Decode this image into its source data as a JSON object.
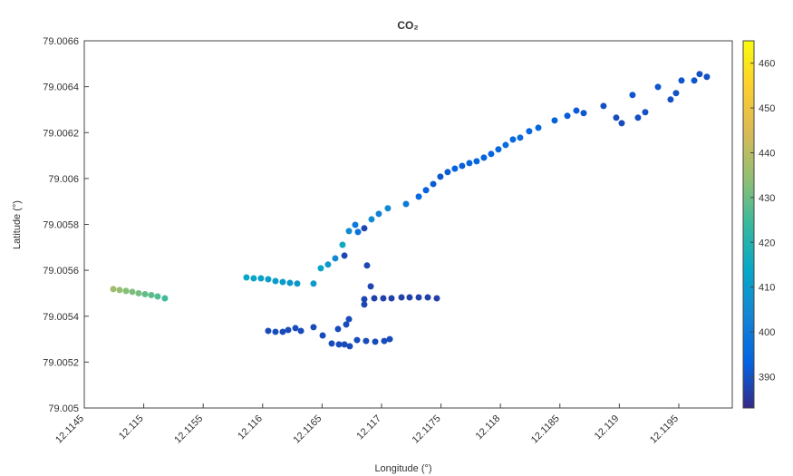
{
  "chart_data": {
    "type": "scatter",
    "title": "CO₂",
    "x_label": "Longitude (°)",
    "y_label": "Latitude (°)",
    "colormap": "parula",
    "xlim": [
      12.1145,
      12.11995
    ],
    "ylim": [
      79.005,
      79.0066
    ],
    "xticks": [
      12.1145,
      12.115,
      12.1155,
      12.116,
      12.1165,
      12.117,
      12.1175,
      12.118,
      12.1185,
      12.119,
      12.1195
    ],
    "yticks": [
      79.005,
      79.0052,
      79.0054,
      79.0056,
      79.0058,
      79.006,
      79.0062,
      79.0064,
      79.0066
    ],
    "clim": [
      383,
      465
    ],
    "cticks": [
      390,
      400,
      410,
      420,
      430,
      440,
      450,
      460
    ],
    "x": [
      12.114744,
      12.114797,
      12.114851,
      12.114904,
      12.114957,
      12.115011,
      12.115064,
      12.115117,
      12.115178,
      12.115864,
      12.115925,
      12.115986,
      12.116047,
      12.116108,
      12.116169,
      12.11623,
      12.116291,
      12.116428,
      12.116489,
      12.11655,
      12.116611,
      12.116672,
      12.116688,
      12.116726,
      12.116779,
      12.116802,
      12.116855,
      12.116916,
      12.116977,
      12.117053,
      12.117206,
      12.117313,
      12.117374,
      12.117435,
      12.117495,
      12.117556,
      12.117617,
      12.117678,
      12.117739,
      12.1178,
      12.117861,
      12.117922,
      12.117983,
      12.118044,
      12.118105,
      12.118166,
      12.118242,
      12.118319,
      12.118456,
      12.118563,
      12.118639,
      12.1187,
      12.118867,
      12.118974,
      12.11902,
      12.119111,
      12.119157,
      12.119218,
      12.119325,
      12.119431,
      12.119477,
      12.119523,
      12.11963,
      12.119675,
      12.119736,
      12.116878,
      12.116909,
      12.116855,
      12.116855,
      12.116939,
      12.117015,
      12.117084,
      12.117168,
      12.117236,
      12.117313,
      12.117389,
      12.117465,
      12.116047,
      12.116108,
      12.116169,
      12.116215,
      12.116276,
      12.116322,
      12.116428,
      12.116505,
      12.116581,
      12.116642,
      12.116688,
      12.116733,
      12.116634,
      12.116703,
      12.116726,
      12.116794,
      12.11687,
      12.116947,
      12.117023,
      12.117069
    ],
    "values": [
      79.005518,
      79.005514,
      79.00551,
      79.005506,
      79.0055,
      79.005496,
      79.005492,
      79.005486,
      79.005478,
      79.005569,
      79.005565,
      79.005565,
      79.005561,
      79.005553,
      79.005549,
      79.005545,
      79.005542,
      79.005542,
      79.005609,
      79.005625,
      79.005652,
      79.005711,
      79.005664,
      79.005771,
      79.005798,
      79.005767,
      79.005783,
      79.005822,
      79.005846,
      79.00587,
      79.005889,
      79.005921,
      79.005949,
      79.005976,
      79.006008,
      79.006028,
      79.006043,
      79.006055,
      79.006067,
      79.006075,
      79.006091,
      79.006107,
      79.006127,
      79.006146,
      79.00617,
      79.006178,
      79.006206,
      79.006221,
      79.006253,
      79.006273,
      79.006296,
      79.006285,
      79.006316,
      79.006265,
      79.006241,
      79.006364,
      79.006265,
      79.006289,
      79.006399,
      79.006344,
      79.006372,
      79.006427,
      79.006427,
      79.006455,
      79.006443,
      79.005621,
      79.00553,
      79.005451,
      79.005474,
      79.005478,
      79.005478,
      79.005478,
      79.005482,
      79.005482,
      79.005482,
      79.005482,
      79.005478,
      79.005336,
      79.005332,
      79.005332,
      79.00534,
      79.005348,
      79.005336,
      79.005352,
      79.005316,
      79.005281,
      79.005277,
      79.005277,
      79.005269,
      79.005344,
      79.005364,
      79.005387,
      79.005296,
      79.005292,
      79.005289,
      79.005292,
      79.0053
    ],
    "color_values": [
      436,
      435,
      433,
      432,
      431,
      429,
      428,
      427,
      425,
      413,
      413,
      412,
      411,
      410,
      410,
      409,
      409,
      410,
      413,
      410,
      405,
      415,
      388,
      405,
      400,
      398,
      388,
      405,
      402,
      405,
      400,
      395,
      393,
      392,
      391,
      392,
      393,
      392,
      393,
      394,
      393,
      394,
      395,
      396,
      395,
      396,
      395,
      394,
      393,
      392,
      392,
      391,
      390,
      389,
      389,
      391,
      390,
      390,
      391,
      390,
      390,
      391,
      391,
      390,
      390,
      388,
      388,
      388,
      388,
      387,
      387,
      387,
      387,
      387,
      387,
      387,
      387,
      389,
      389,
      389,
      389,
      389,
      389,
      389,
      389,
      389,
      389,
      389,
      389,
      389,
      389,
      389,
      389,
      389,
      389,
      389,
      389
    ]
  }
}
